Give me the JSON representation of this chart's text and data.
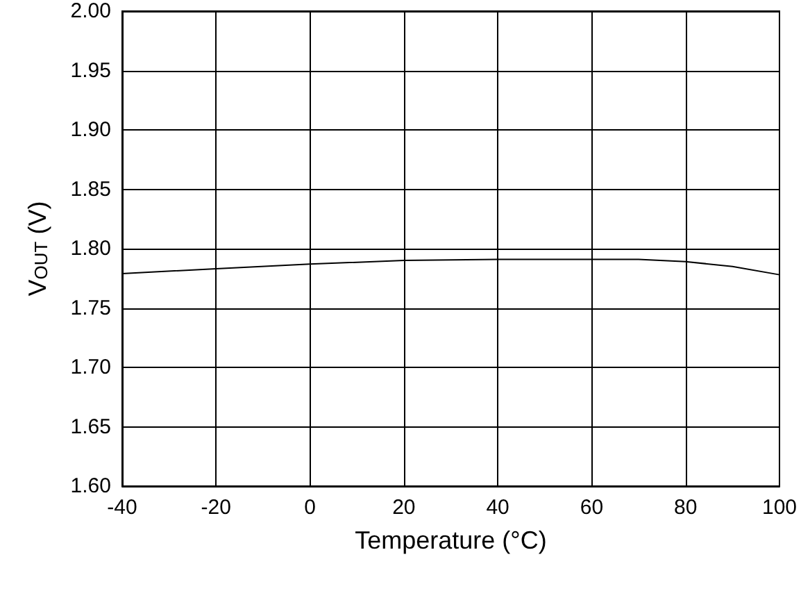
{
  "chart_data": {
    "type": "line",
    "xlabel": "Temperature (°C)",
    "ylabel": "V$_{OUT}$ (V)",
    "x": [
      -40,
      -20,
      0,
      20,
      40,
      60,
      70,
      80,
      90,
      100
    ],
    "series": [
      {
        "color": "#000000",
        "values": [
          1.779,
          1.783,
          1.787,
          1.79,
          1.791,
          1.791,
          1.791,
          1.789,
          1.785,
          1.778
        ]
      }
    ],
    "xlim": [
      -40,
      100
    ],
    "xticks": [
      -40,
      -20,
      0,
      20,
      40,
      60,
      80,
      100
    ],
    "ylim": [
      1.6,
      2.0
    ],
    "yticks": [
      {
        "value": 1.6,
        "label": "1.60"
      },
      {
        "value": 1.65,
        "label": "1.65"
      },
      {
        "value": 1.7,
        "label": "1.70"
      },
      {
        "value": 1.75,
        "label": "1.75"
      },
      {
        "value": 1.8,
        "label": "1.80"
      },
      {
        "value": 1.85,
        "label": "1.85"
      },
      {
        "value": 1.9,
        "label": "1.90"
      },
      {
        "value": 1.95,
        "label": "1.95"
      },
      {
        "value": 2.0,
        "label": "2.00"
      }
    ],
    "grid": true,
    "marker": "none",
    "line_style": "solid"
  }
}
